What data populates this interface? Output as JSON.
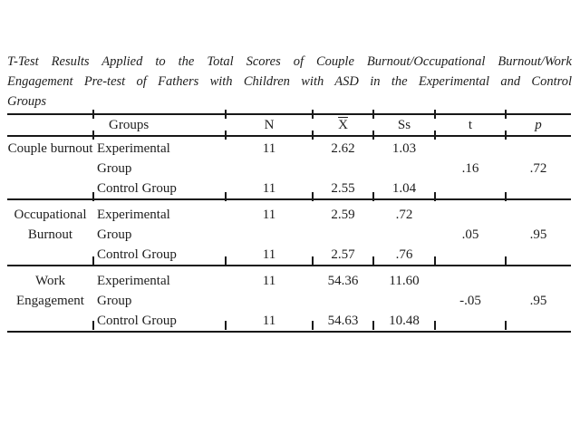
{
  "title": {
    "lines": [
      "T-Test Results Applied to the Total Scores of Couple Burnout/Occupational Burnout/Work",
      "Engagement Pre-test of Fathers with Children with ASD in the Experimental and Control",
      "Groups"
    ]
  },
  "table": {
    "header": {
      "groups": "Groups",
      "n": "N",
      "mean": "X",
      "sd": "Ss",
      "t": "t",
      "p": "p"
    },
    "sections": [
      {
        "label": "Couple burnout",
        "rows": [
          {
            "group": "Experimental Group",
            "n": "11",
            "mean": "2.62",
            "sd": "1.03"
          },
          {
            "group": "Control Group",
            "n": "11",
            "mean": "2.55",
            "sd": "1.04"
          }
        ],
        "t": ".16",
        "p": ".72"
      },
      {
        "label": "Occupational Burnout",
        "rows": [
          {
            "group": "Experimental Group",
            "n": "11",
            "mean": "2.59",
            "sd": ".72"
          },
          {
            "group": "Control Group",
            "n": "11",
            "mean": "2.57",
            "sd": ".76"
          }
        ],
        "t": ".05",
        "p": ".95"
      },
      {
        "label": "Work Engagement",
        "rows": [
          {
            "group": "Experimental Group",
            "n": "11",
            "mean": "54.36",
            "sd": "11.60"
          },
          {
            "group": "Control Group",
            "n": "11",
            "mean": "54.63",
            "sd": "10.48"
          }
        ],
        "t": "-.05",
        "p": ".95"
      }
    ]
  },
  "colors": {
    "text": "#1d1d1d",
    "rule": "#171717",
    "background": "#ffffff"
  }
}
